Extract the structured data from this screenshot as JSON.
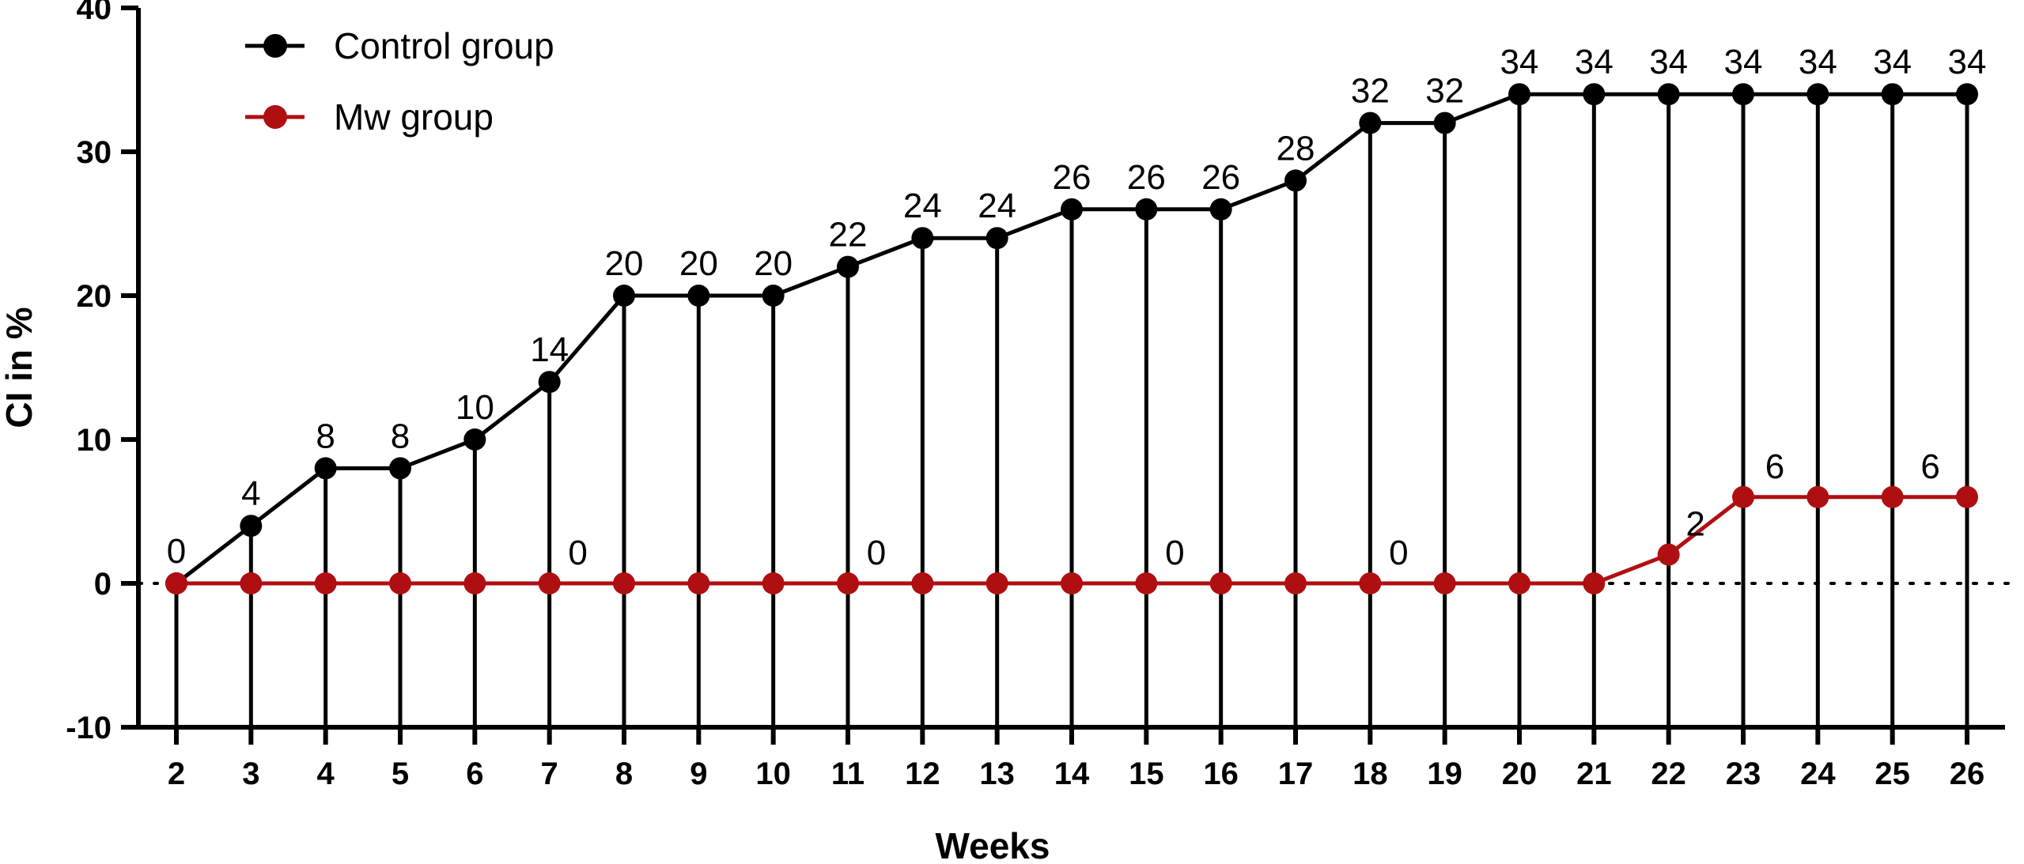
{
  "chart_data": {
    "type": "line",
    "title": "",
    "xlabel": "Weeks",
    "ylabel": "CI in %",
    "x": [
      2,
      3,
      4,
      5,
      6,
      7,
      8,
      9,
      10,
      11,
      12,
      13,
      14,
      15,
      16,
      17,
      18,
      19,
      20,
      21,
      22,
      23,
      24,
      25,
      26
    ],
    "xlim": [
      2,
      26
    ],
    "ylim": [
      -10,
      40
    ],
    "yticks": [
      -10,
      0,
      10,
      20,
      30,
      40
    ],
    "ytick_labels": [
      "-10",
      "0",
      "10",
      "20",
      "30",
      "40"
    ],
    "xtick_labels": [
      "2",
      "3",
      "4",
      "5",
      "6",
      "7",
      "8",
      "9",
      "10",
      "11",
      "12",
      "13",
      "14",
      "15",
      "16",
      "17",
      "18",
      "19",
      "20",
      "21",
      "22",
      "23",
      "24",
      "25",
      "26"
    ],
    "grid": false,
    "reference_line": {
      "y": 0,
      "style": "dotted",
      "color": "#000000"
    },
    "drop_lines": true,
    "legend": {
      "position": "top-left"
    },
    "series": [
      {
        "name": "Control group",
        "color": "#000000",
        "values": [
          0,
          4,
          8,
          8,
          10,
          14,
          20,
          20,
          20,
          22,
          24,
          24,
          26,
          26,
          26,
          28,
          32,
          32,
          34,
          34,
          34,
          34,
          34,
          34,
          34
        ],
        "point_labels": [
          "0",
          "4",
          "8",
          "8",
          "10",
          "14",
          "20",
          "20",
          "20",
          "22",
          "24",
          "24",
          "26",
          "26",
          "26",
          "28",
          "32",
          "32",
          "34",
          "34",
          "34",
          "34",
          "34",
          "34",
          "34"
        ]
      },
      {
        "name": "Mw group",
        "color": "#b00f12",
        "values": [
          0,
          0,
          0,
          0,
          0,
          0,
          0,
          0,
          0,
          0,
          0,
          0,
          0,
          0,
          0,
          0,
          0,
          0,
          0,
          0,
          2,
          6,
          6,
          6,
          6
        ],
        "point_labels": [
          "",
          "",
          "",
          "",
          "",
          "0",
          "",
          "",
          "",
          "0",
          "",
          "",
          "",
          "0",
          "",
          "",
          "0",
          "",
          "",
          "",
          "2",
          "6",
          "",
          "6",
          ""
        ]
      }
    ]
  }
}
